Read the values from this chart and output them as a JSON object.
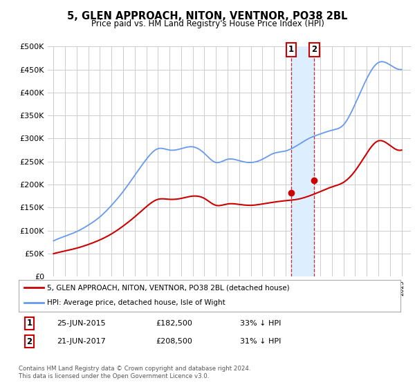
{
  "title": "5, GLEN APPROACH, NITON, VENTNOR, PO38 2BL",
  "subtitle": "Price paid vs. HM Land Registry's House Price Index (HPI)",
  "legend_line1": "5, GLEN APPROACH, NITON, VENTNOR, PO38 2BL (detached house)",
  "legend_line2": "HPI: Average price, detached house, Isle of Wight",
  "footer": "Contains HM Land Registry data © Crown copyright and database right 2024.\nThis data is licensed under the Open Government Licence v3.0.",
  "sale1_date": "25-JUN-2015",
  "sale1_price": 182500,
  "sale1_year": 2015.48,
  "sale2_date": "21-JUN-2017",
  "sale2_price": 208500,
  "sale2_year": 2017.47,
  "ylim": [
    0,
    500000
  ],
  "xlim_start": 1994.5,
  "xlim_end": 2025.8,
  "red_color": "#cc0000",
  "blue_color": "#6699ee",
  "shade_color": "#ddeeff",
  "grid_color": "#cccccc",
  "background_color": "#ffffff",
  "hpi_years": [
    1995,
    1996,
    1997,
    1998,
    1999,
    2000,
    2001,
    2002,
    2003,
    2004,
    2005,
    2006,
    2007,
    2008,
    2009,
    2010,
    2011,
    2012,
    2013,
    2014,
    2015,
    2016,
    2017,
    2018,
    2019,
    2020,
    2021,
    2022,
    2023,
    2024,
    2025
  ],
  "hpi_values": [
    78000,
    88000,
    98000,
    112000,
    130000,
    155000,
    185000,
    220000,
    255000,
    278000,
    275000,
    278000,
    282000,
    268000,
    248000,
    255000,
    252000,
    248000,
    255000,
    268000,
    273000,
    285000,
    300000,
    310000,
    318000,
    330000,
    375000,
    430000,
    465000,
    460000,
    450000
  ],
  "red_years": [
    1995,
    1996,
    1997,
    1998,
    1999,
    2000,
    2001,
    2002,
    2003,
    2004,
    2005,
    2006,
    2007,
    2008,
    2009,
    2010,
    2011,
    2012,
    2013,
    2014,
    2015,
    2016,
    2017,
    2018,
    2019,
    2020,
    2021,
    2022,
    2023,
    2024,
    2025
  ],
  "red_values": [
    50000,
    56000,
    62000,
    70000,
    80000,
    93000,
    110000,
    130000,
    152000,
    168000,
    168000,
    170000,
    175000,
    170000,
    155000,
    158000,
    157000,
    155000,
    158000,
    162000,
    165000,
    168000,
    175000,
    185000,
    195000,
    205000,
    230000,
    268000,
    295000,
    285000,
    275000
  ]
}
